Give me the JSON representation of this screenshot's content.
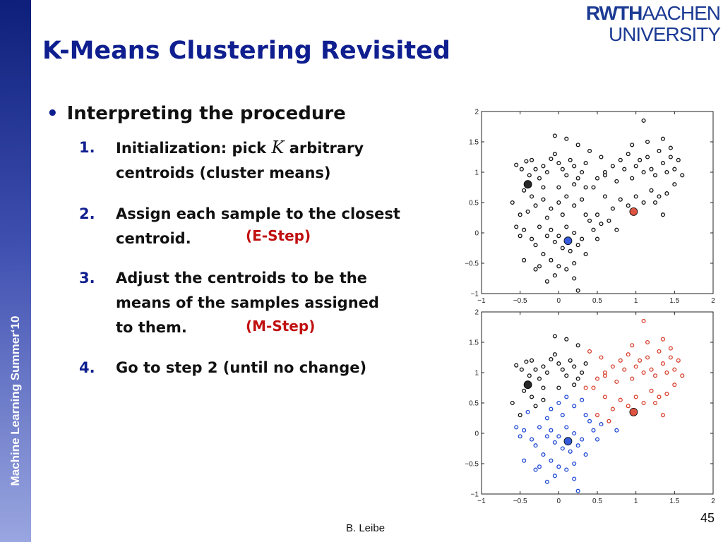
{
  "sidebar": {
    "text": "Machine Learning Summer‘10"
  },
  "logo": {
    "top_bold": "RWTH",
    "top_regular": "AACHEN",
    "bottom": "UNIVERSITY"
  },
  "title": "K-Means Clustering Revisited",
  "bullet": "Interpreting the procedure",
  "steps": [
    {
      "num": "1.",
      "line1_pre": "Initialization: pick ",
      "line1_var": "K",
      "line1_post": " arbitrary",
      "line2": "centroids (cluster means)"
    },
    {
      "num": "2.",
      "line1": "Assign each sample to the closest",
      "line2": "centroid.",
      "tag": "(E-Step)"
    },
    {
      "num": "3.",
      "line1": "Adjust the centroids to be the",
      "line2": "means of the samples assigned",
      "line3": "to them.",
      "tag": "(M-Step)"
    },
    {
      "num": "4.",
      "line1": "Go to step 2 (until no change)"
    }
  ],
  "footer": "B. Leibe",
  "page_number": "45",
  "colors": {
    "accent_blue": "#0f1f8f",
    "tag_red": "#c01010",
    "cluster_black": "#111111",
    "cluster_red": "#d9412f",
    "cluster_blue": "#1f49d6"
  },
  "chart_data": [
    {
      "type": "scatter",
      "title": "",
      "xlabel": "",
      "ylabel": "",
      "xlim": [
        -1,
        2
      ],
      "ylim": [
        -1,
        2
      ],
      "xticks": [
        "−1",
        "−0.5",
        "0",
        "0.5",
        "1",
        "1.5",
        "2"
      ],
      "yticks": [
        "−1",
        "−0.5",
        "0",
        "0.5",
        "1",
        "1.5",
        "2"
      ],
      "series": [
        {
          "color": "#111111",
          "points": [
            [
              -0.55,
              1.12
            ],
            [
              -0.48,
              1.05
            ],
            [
              -0.42,
              1.18
            ],
            [
              -0.38,
              0.95
            ],
            [
              -0.3,
              1.05
            ],
            [
              -0.35,
              1.2
            ],
            [
              -0.25,
              0.9
            ],
            [
              -0.2,
              1.1
            ],
            [
              -0.15,
              1.0
            ],
            [
              -0.1,
              1.22
            ],
            [
              -0.05,
              1.3
            ],
            [
              0.0,
              1.15
            ],
            [
              0.05,
              1.05
            ],
            [
              0.1,
              0.95
            ],
            [
              0.15,
              1.2
            ],
            [
              0.2,
              1.1
            ],
            [
              0.25,
              0.9
            ],
            [
              0.3,
              1.0
            ],
            [
              0.35,
              1.15
            ],
            [
              -0.45,
              0.7
            ],
            [
              -0.35,
              0.6
            ],
            [
              -0.3,
              0.45
            ],
            [
              -0.2,
              0.55
            ],
            [
              -0.1,
              0.4
            ],
            [
              0.0,
              0.5
            ],
            [
              0.1,
              0.6
            ],
            [
              0.2,
              0.45
            ],
            [
              0.3,
              0.55
            ],
            [
              0.35,
              0.3
            ],
            [
              0.05,
              0.3
            ],
            [
              -0.15,
              0.25
            ],
            [
              -0.4,
              0.35
            ],
            [
              -0.25,
              0.1
            ],
            [
              -0.1,
              0.05
            ],
            [
              0.0,
              -0.05
            ],
            [
              0.1,
              0.1
            ],
            [
              0.2,
              0.0
            ],
            [
              0.3,
              -0.1
            ],
            [
              0.25,
              -0.2
            ],
            [
              0.15,
              -0.3
            ],
            [
              0.05,
              -0.25
            ],
            [
              -0.05,
              -0.15
            ],
            [
              -0.15,
              -0.05
            ],
            [
              -0.3,
              -0.2
            ],
            [
              -0.2,
              -0.35
            ],
            [
              -0.1,
              -0.45
            ],
            [
              0.0,
              -0.55
            ],
            [
              0.1,
              -0.6
            ],
            [
              0.2,
              -0.75
            ],
            [
              0.25,
              -0.95
            ],
            [
              -0.05,
              -0.7
            ],
            [
              -0.25,
              -0.55
            ],
            [
              -0.35,
              -0.1
            ],
            [
              -0.45,
              0.05
            ],
            [
              -0.5,
              -0.05
            ],
            [
              -0.55,
              0.1
            ],
            [
              0.4,
              0.2
            ],
            [
              0.45,
              0.05
            ],
            [
              0.5,
              0.3
            ],
            [
              0.55,
              0.15
            ],
            [
              0.45,
              0.75
            ],
            [
              0.5,
              0.9
            ],
            [
              0.6,
              1.0
            ],
            [
              0.7,
              1.1
            ],
            [
              0.75,
              0.85
            ],
            [
              0.8,
              1.2
            ],
            [
              0.85,
              1.05
            ],
            [
              0.9,
              1.3
            ],
            [
              0.95,
              0.9
            ],
            [
              1.0,
              1.1
            ],
            [
              1.05,
              1.2
            ],
            [
              1.1,
              1.0
            ],
            [
              1.15,
              1.25
            ],
            [
              1.2,
              1.05
            ],
            [
              1.25,
              0.95
            ],
            [
              1.3,
              1.35
            ],
            [
              1.35,
              1.15
            ],
            [
              1.4,
              1.0
            ],
            [
              1.45,
              1.25
            ],
            [
              1.5,
              1.05
            ],
            [
              1.55,
              1.2
            ],
            [
              1.6,
              0.95
            ],
            [
              1.3,
              0.6
            ],
            [
              1.2,
              0.7
            ],
            [
              1.1,
              0.5
            ],
            [
              1.0,
              0.6
            ],
            [
              0.9,
              0.45
            ],
            [
              0.8,
              0.55
            ],
            [
              0.7,
              0.4
            ],
            [
              0.6,
              0.6
            ],
            [
              1.35,
              0.3
            ],
            [
              1.25,
              0.5
            ],
            [
              1.4,
              0.65
            ],
            [
              1.5,
              0.8
            ],
            [
              1.1,
              1.85
            ],
            [
              0.6,
              0.95
            ],
            [
              0.95,
              1.45
            ],
            [
              1.15,
              1.5
            ],
            [
              1.35,
              1.55
            ],
            [
              1.45,
              1.4
            ],
            [
              0.1,
              1.55
            ],
            [
              -0.05,
              1.6
            ],
            [
              0.25,
              1.45
            ],
            [
              0.4,
              1.35
            ],
            [
              0.55,
              1.25
            ],
            [
              -0.6,
              0.5
            ],
            [
              -0.5,
              0.3
            ],
            [
              0.35,
              0.75
            ],
            [
              0.2,
              0.8
            ],
            [
              0.0,
              0.75
            ],
            [
              -0.2,
              0.75
            ],
            [
              0.65,
              0.2
            ],
            [
              0.75,
              0.05
            ],
            [
              0.5,
              -0.1
            ],
            [
              0.35,
              -0.35
            ],
            [
              0.2,
              -0.5
            ],
            [
              -0.45,
              -0.45
            ],
            [
              -0.3,
              -0.6
            ],
            [
              -0.15,
              -0.8
            ]
          ]
        },
        {
          "color": "#111111",
          "centroid": true,
          "points": [
            [
              -0.4,
              0.8
            ]
          ]
        },
        {
          "color": "#d9412f",
          "centroid": true,
          "points": [
            [
              0.97,
              0.35
            ]
          ]
        },
        {
          "color": "#1f49d6",
          "centroid": true,
          "points": [
            [
              0.12,
              -0.13
            ]
          ]
        }
      ]
    },
    {
      "type": "scatter",
      "title": "",
      "xlabel": "",
      "ylabel": "",
      "xlim": [
        -1,
        2
      ],
      "ylim": [
        -1,
        2
      ],
      "xticks": [
        "−1",
        "−0.5",
        "0",
        "0.5",
        "1",
        "1.5",
        "2"
      ],
      "yticks": [
        "−1",
        "−0.5",
        "0",
        "0.5",
        "1",
        "1.5",
        "2"
      ],
      "series": [
        {
          "color": "#111111",
          "points": [
            [
              -0.55,
              1.12
            ],
            [
              -0.48,
              1.05
            ],
            [
              -0.42,
              1.18
            ],
            [
              -0.38,
              0.95
            ],
            [
              -0.3,
              1.05
            ],
            [
              -0.35,
              1.2
            ],
            [
              -0.25,
              0.9
            ],
            [
              -0.2,
              1.1
            ],
            [
              -0.15,
              1.0
            ],
            [
              -0.1,
              1.22
            ],
            [
              -0.05,
              1.3
            ],
            [
              0.0,
              1.15
            ],
            [
              0.05,
              1.05
            ],
            [
              0.1,
              0.95
            ],
            [
              0.15,
              1.2
            ],
            [
              0.2,
              1.1
            ],
            [
              0.25,
              0.9
            ],
            [
              0.3,
              1.0
            ],
            [
              0.35,
              1.15
            ],
            [
              -0.45,
              0.7
            ],
            [
              -0.35,
              0.6
            ],
            [
              -0.3,
              0.45
            ],
            [
              -0.2,
              0.55
            ],
            [
              0.0,
              0.75
            ],
            [
              -0.2,
              0.75
            ],
            [
              0.2,
              0.8
            ],
            [
              0.1,
              1.55
            ],
            [
              -0.05,
              1.6
            ],
            [
              0.25,
              1.45
            ],
            [
              -0.6,
              0.5
            ],
            [
              -0.5,
              0.3
            ]
          ]
        },
        {
          "color": "#d9412f",
          "points": [
            [
              0.45,
              0.75
            ],
            [
              0.5,
              0.9
            ],
            [
              0.6,
              1.0
            ],
            [
              0.7,
              1.1
            ],
            [
              0.75,
              0.85
            ],
            [
              0.8,
              1.2
            ],
            [
              0.85,
              1.05
            ],
            [
              0.9,
              1.3
            ],
            [
              0.95,
              0.9
            ],
            [
              1.0,
              1.1
            ],
            [
              1.05,
              1.2
            ],
            [
              1.1,
              1.0
            ],
            [
              1.15,
              1.25
            ],
            [
              1.2,
              1.05
            ],
            [
              1.25,
              0.95
            ],
            [
              1.3,
              1.35
            ],
            [
              1.35,
              1.15
            ],
            [
              1.4,
              1.0
            ],
            [
              1.45,
              1.25
            ],
            [
              1.5,
              1.05
            ],
            [
              1.55,
              1.2
            ],
            [
              1.6,
              0.95
            ],
            [
              1.3,
              0.6
            ],
            [
              1.2,
              0.7
            ],
            [
              1.1,
              0.5
            ],
            [
              1.0,
              0.6
            ],
            [
              0.9,
              0.45
            ],
            [
              0.8,
              0.55
            ],
            [
              0.7,
              0.4
            ],
            [
              0.6,
              0.6
            ],
            [
              1.35,
              0.3
            ],
            [
              1.25,
              0.5
            ],
            [
              1.4,
              0.65
            ],
            [
              1.5,
              0.8
            ],
            [
              1.1,
              1.85
            ],
            [
              0.6,
              0.95
            ],
            [
              0.95,
              1.45
            ],
            [
              1.15,
              1.5
            ],
            [
              1.35,
              1.55
            ],
            [
              1.45,
              1.4
            ],
            [
              0.4,
              1.35
            ],
            [
              0.55,
              1.25
            ],
            [
              0.35,
              0.75
            ],
            [
              0.65,
              0.2
            ],
            [
              0.5,
              0.3
            ]
          ]
        },
        {
          "color": "#1f49d6",
          "points": [
            [
              -0.1,
              0.4
            ],
            [
              0.0,
              0.5
            ],
            [
              0.1,
              0.6
            ],
            [
              0.2,
              0.45
            ],
            [
              0.3,
              0.55
            ],
            [
              0.35,
              0.3
            ],
            [
              0.05,
              0.3
            ],
            [
              -0.15,
              0.25
            ],
            [
              -0.4,
              0.35
            ],
            [
              -0.25,
              0.1
            ],
            [
              -0.1,
              0.05
            ],
            [
              0.0,
              -0.05
            ],
            [
              0.1,
              0.1
            ],
            [
              0.2,
              0.0
            ],
            [
              0.3,
              -0.1
            ],
            [
              0.25,
              -0.2
            ],
            [
              0.15,
              -0.3
            ],
            [
              0.05,
              -0.25
            ],
            [
              -0.05,
              -0.15
            ],
            [
              -0.15,
              -0.05
            ],
            [
              -0.3,
              -0.2
            ],
            [
              -0.2,
              -0.35
            ],
            [
              -0.1,
              -0.45
            ],
            [
              0.0,
              -0.55
            ],
            [
              0.1,
              -0.6
            ],
            [
              0.2,
              -0.75
            ],
            [
              0.25,
              -0.95
            ],
            [
              -0.05,
              -0.7
            ],
            [
              -0.25,
              -0.55
            ],
            [
              -0.35,
              -0.1
            ],
            [
              -0.45,
              0.05
            ],
            [
              -0.5,
              -0.05
            ],
            [
              -0.55,
              0.1
            ],
            [
              0.4,
              0.2
            ],
            [
              0.45,
              0.05
            ],
            [
              0.55,
              0.15
            ],
            [
              0.75,
              0.05
            ],
            [
              0.5,
              -0.1
            ],
            [
              0.35,
              -0.35
            ],
            [
              0.2,
              -0.5
            ],
            [
              -0.45,
              -0.45
            ],
            [
              -0.3,
              -0.6
            ],
            [
              -0.15,
              -0.8
            ]
          ]
        },
        {
          "color": "#111111",
          "centroid": true,
          "points": [
            [
              -0.4,
              0.8
            ]
          ]
        },
        {
          "color": "#d9412f",
          "centroid": true,
          "points": [
            [
              0.97,
              0.35
            ]
          ]
        },
        {
          "color": "#1f49d6",
          "centroid": true,
          "points": [
            [
              0.12,
              -0.13
            ]
          ]
        }
      ]
    }
  ]
}
